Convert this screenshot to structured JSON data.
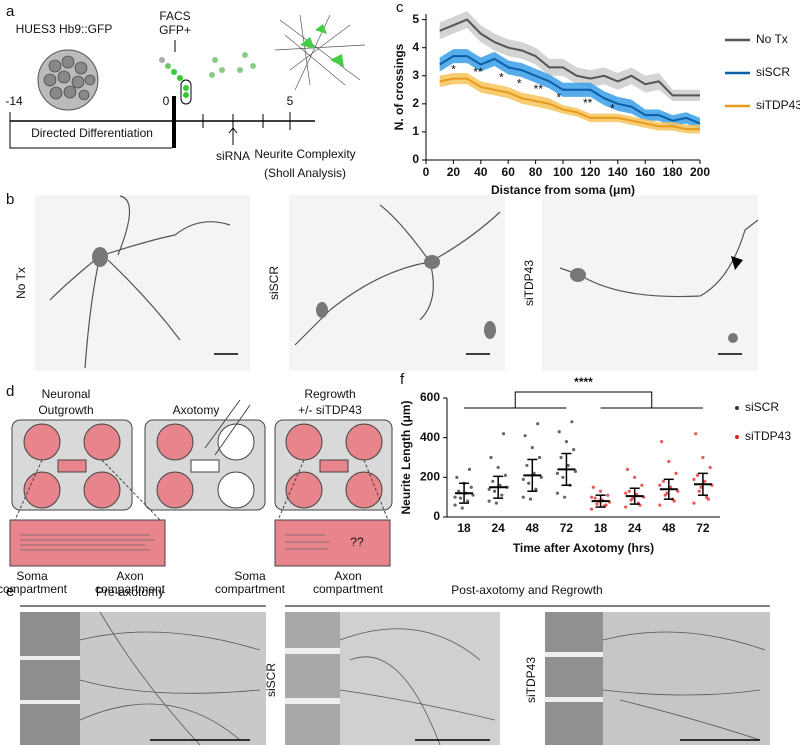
{
  "panels": {
    "a": "a",
    "b": "b",
    "c": "c",
    "d": "d",
    "e": "e",
    "f": "f"
  },
  "panel_a": {
    "cells": "HUES3 Hb9::GFP",
    "facs": "FACS",
    "gfp": "GFP+",
    "t_start": "-14",
    "t_zero": "0",
    "t_end": "5",
    "phase": "Directed Differentiation",
    "sirna": "siRNA",
    "readout_1": "Neurite Complexity",
    "readout_2": "(Sholl Analysis)"
  },
  "panel_b": {
    "labels": [
      "No Tx",
      "siSCR",
      "siTDP43"
    ]
  },
  "panel_d": {
    "outgrowth_1": "Neuronal",
    "outgrowth_2": "Outgrowth",
    "axotomy": "Axotomy",
    "regrowth_1": "Regrowth",
    "regrowth_2": "+/- siTDP43",
    "soma": "Soma",
    "axon": "Axon",
    "compartment": "compartment",
    "unknown": "??"
  },
  "panel_e": {
    "pre": "Pre-axotomy",
    "post": "Post-axotomy and Regrowth",
    "labels": [
      "siSCR",
      "siTDP43"
    ]
  },
  "chart_data": [
    {
      "type": "line",
      "ylabel": "N. of crossings",
      "xlabel": "Distance from soma (μm)",
      "x": [
        10,
        20,
        30,
        40,
        50,
        60,
        70,
        80,
        90,
        100,
        110,
        120,
        130,
        140,
        150,
        160,
        170,
        180,
        190,
        200
      ],
      "xlim": [
        0,
        200
      ],
      "xticks": [
        0,
        20,
        40,
        60,
        80,
        100,
        120,
        140,
        160,
        180,
        200
      ],
      "ylim": [
        0,
        5.2
      ],
      "yticks": [
        0,
        1,
        2,
        3,
        4,
        5
      ],
      "series": [
        {
          "name": "No Tx",
          "color": "#555555",
          "band_color": "#cccccc",
          "values": [
            4.6,
            4.8,
            5.0,
            4.5,
            4.2,
            4.0,
            3.9,
            3.7,
            3.3,
            3.3,
            3.0,
            2.9,
            3.0,
            2.8,
            3.0,
            2.7,
            2.8,
            2.3,
            2.3,
            2.3
          ],
          "errors": [
            0.3,
            0.3,
            0.3,
            0.3,
            0.3,
            0.3,
            0.3,
            0.3,
            0.3,
            0.3,
            0.3,
            0.3,
            0.3,
            0.3,
            0.3,
            0.3,
            0.3,
            0.2,
            0.2,
            0.2
          ]
        },
        {
          "name": "siSCR",
          "color": "#0b5ea8",
          "band_color": "#3a9ee8",
          "values": [
            3.4,
            3.7,
            3.7,
            3.4,
            3.6,
            3.3,
            3.2,
            3.0,
            2.8,
            2.5,
            2.5,
            2.5,
            2.2,
            2.0,
            1.9,
            1.6,
            1.6,
            1.4,
            1.5,
            1.3
          ],
          "errors": [
            0.25,
            0.25,
            0.25,
            0.25,
            0.25,
            0.25,
            0.25,
            0.25,
            0.25,
            0.25,
            0.25,
            0.25,
            0.25,
            0.25,
            0.25,
            0.2,
            0.2,
            0.2,
            0.2,
            0.2
          ]
        },
        {
          "name": "siTDP43",
          "color": "#e89a1c",
          "band_color": "#f6c35a",
          "values": [
            2.8,
            2.9,
            2.9,
            2.6,
            2.5,
            2.4,
            2.2,
            2.1,
            2.0,
            1.8,
            1.7,
            1.5,
            1.5,
            1.5,
            1.4,
            1.3,
            1.2,
            1.2,
            1.1,
            1.1
          ],
          "errors": [
            0.2,
            0.2,
            0.2,
            0.2,
            0.2,
            0.2,
            0.2,
            0.2,
            0.2,
            0.15,
            0.15,
            0.15,
            0.15,
            0.15,
            0.15,
            0.15,
            0.15,
            0.15,
            0.15,
            0.15
          ]
        }
      ],
      "annotations": [
        {
          "text": "*",
          "x": 20,
          "y": 3.2
        },
        {
          "text": "**",
          "x": 38,
          "y": 3.1
        },
        {
          "text": "*",
          "x": 55,
          "y": 2.9
        },
        {
          "text": "*",
          "x": 68,
          "y": 2.7
        },
        {
          "text": "**",
          "x": 82,
          "y": 2.5
        },
        {
          "text": "*",
          "x": 97,
          "y": 2.2
        },
        {
          "text": "**",
          "x": 118,
          "y": 2.0
        },
        {
          "text": "*",
          "x": 136,
          "y": 1.8
        }
      ]
    },
    {
      "type": "dot",
      "ylabel": "Neurite Length (μm)",
      "xlabel": "Time after Axotomy (hrs)",
      "categories": [
        "18",
        "24",
        "48",
        "72"
      ],
      "ylim": [
        0,
        600
      ],
      "yticks": [
        0,
        200,
        400,
        600
      ],
      "significance": "****",
      "series": [
        {
          "name": "siSCR",
          "color": "#333333",
          "means": [
            120,
            150,
            210,
            240
          ],
          "sds": [
            50,
            55,
            80,
            80
          ],
          "points": [
            [
              60,
              80,
              95,
              110,
              120,
              130,
              150,
              170,
              200,
              240,
              45,
              100
            ],
            [
              80,
              110,
              130,
              150,
              160,
              180,
              210,
              250,
              300,
              420,
              70,
              140
            ],
            [
              100,
              140,
              170,
              200,
              220,
              260,
              300,
              350,
              410,
              470,
              90,
              190
            ],
            [
              120,
              160,
              200,
              230,
              260,
              300,
              340,
              380,
              430,
              480,
              100,
              220
            ]
          ]
        },
        {
          "name": "siTDP43",
          "color": "#e02020",
          "means": [
            80,
            105,
            140,
            165
          ],
          "sds": [
            30,
            40,
            50,
            55
          ],
          "points": [
            [
              40,
              55,
              65,
              75,
              85,
              95,
              110,
              130,
              150,
              60,
              80,
              100
            ],
            [
              50,
              70,
              85,
              100,
              115,
              130,
              160,
              200,
              240,
              60,
              95,
              120
            ],
            [
              60,
              90,
              110,
              130,
              150,
              180,
              220,
              280,
              380,
              80,
              120,
              160
            ],
            [
              70,
              100,
              130,
              160,
              180,
              210,
              250,
              300,
              420,
              90,
              150,
              190
            ]
          ]
        }
      ]
    }
  ]
}
